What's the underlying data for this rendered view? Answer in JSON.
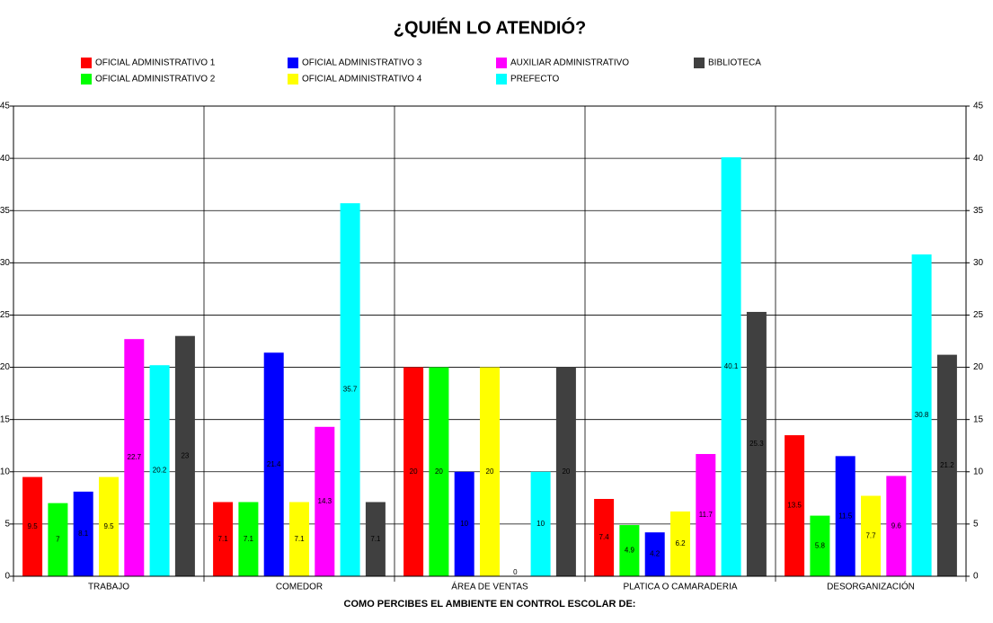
{
  "chart_data": {
    "type": "bar",
    "title": "¿QUIÉN LO ATENDIÓ?",
    "x_label": "COMO PERCIBES EL AMBIENTE EN CONTROL ESCOLAR DE:",
    "categories": [
      "TRABAJO",
      "COMEDOR",
      "ÁREA DE VENTAS",
      "PLATICA O CAMARADERIA",
      "DESORGANIZACIÓN"
    ],
    "series": [
      {
        "name": "OFICIAL ADMINISTRATIVO 1",
        "color": "#ff0000",
        "values": [
          9.5,
          7.1,
          20,
          7.4,
          13.5
        ]
      },
      {
        "name": "OFICIAL ADMINISTRATIVO 2",
        "color": "#00ff00",
        "values": [
          7,
          7.1,
          20,
          4.9,
          5.8
        ]
      },
      {
        "name": "OFICIAL ADMINISTRATIVO 3",
        "color": "#0000ff",
        "values": [
          8.1,
          21.4,
          10,
          4.2,
          11.5
        ]
      },
      {
        "name": "OFICIAL ADMINISTRATIVO 4",
        "color": "#ffff00",
        "values": [
          9.5,
          7.1,
          20,
          6.2,
          7.7
        ]
      },
      {
        "name": "AUXILIAR ADMINISTRATIVO",
        "color": "#ff00ff",
        "values": [
          22.7,
          14.3,
          0,
          11.7,
          9.6
        ]
      },
      {
        "name": "PREFECTO",
        "color": "#00ffff",
        "values": [
          20.2,
          35.7,
          10,
          40.1,
          30.8
        ]
      },
      {
        "name": "BIBLIOTECA",
        "color": "#404040",
        "values": [
          23,
          7.1,
          20,
          25.3,
          21.2
        ]
      }
    ],
    "ylim": [
      0,
      45
    ],
    "yticks": [
      0,
      5,
      10,
      15,
      20,
      25,
      30,
      35,
      40,
      45
    ],
    "grid": true
  }
}
